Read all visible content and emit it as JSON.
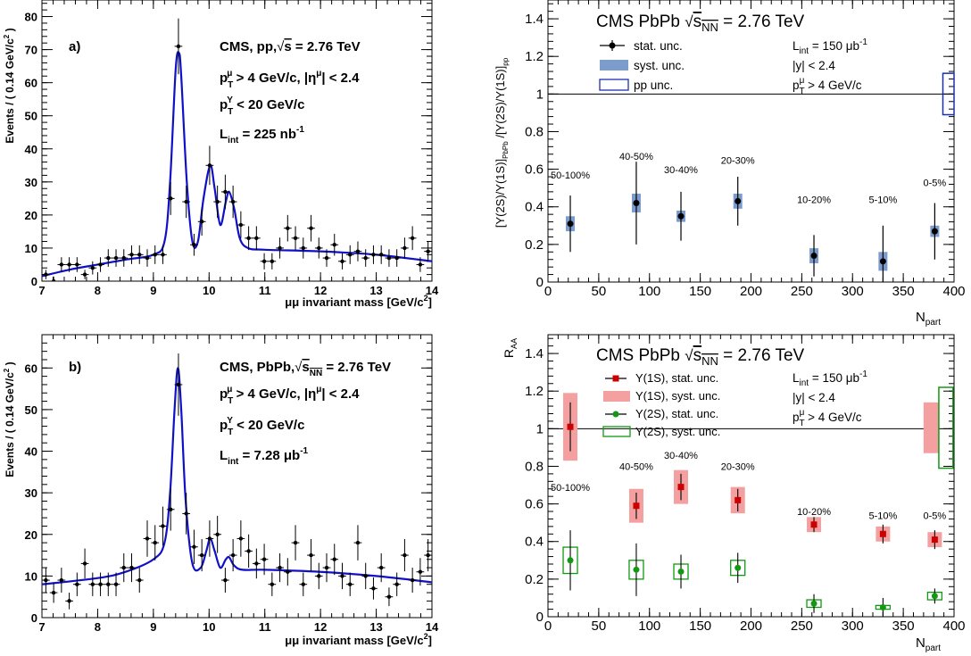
{
  "panels": {
    "a": {
      "tag": "a)",
      "lines": [
        "CMS, pp,√s = 2.76 TeV",
        "pT^μ > 4 GeV/c, |η^μ| < 2.4",
        "pT^Υ < 20 GeV/c",
        "L_int = 225 nb^-1"
      ],
      "xlabel": "μμ invariant mass [GeV/c²]",
      "ylabel": "Events / ( 0.14 GeV/c² )"
    },
    "b": {
      "tag": "b)",
      "lines": [
        "CMS, PbPb,√s_NN = 2.76 TeV",
        "pT^μ > 4 GeV/c, |η^μ| < 2.4",
        "pT^Υ < 20 GeV/c",
        "L_int = 7.28 μb^-1"
      ],
      "xlabel": "μμ invariant mass [GeV/c²]",
      "ylabel": "Events / ( 0.14 GeV/c² )"
    },
    "c": {
      "title": "CMS PbPb √sNN = 2.76 TeV",
      "legend": [
        "stat. unc.",
        "syst. unc.",
        "pp unc."
      ],
      "info": [
        "L_int = 150 μb^-1",
        "|y| < 2.4",
        "pT^μ > 4 GeV/c"
      ],
      "ylabel": "[Υ(2S)/Υ(1S)]PbPb /[Υ(2S)/Υ(1S)]pp",
      "xlabel": "N_part"
    },
    "d": {
      "title": "CMS PbPb √sNN = 2.76 TeV",
      "legend": [
        "Υ(1S), stat. unc.",
        "Υ(1S), syst. unc.",
        "Υ(2S), stat. unc.",
        "Υ(2S), syst. unc."
      ],
      "info": [
        "L_int = 150 μb^-1",
        "|y| < 2.4",
        "pT^μ > 4 GeV/c"
      ],
      "ylabel": "R_AA",
      "xlabel": "N_part"
    }
  },
  "chart_data": [
    {
      "type": "scatter",
      "panel": "a",
      "xlabel": "μμ invariant mass [GeV/c²]",
      "ylabel": "Events / ( 0.14 GeV/c² )",
      "xlim": [
        7,
        14
      ],
      "ylim": [
        0,
        85
      ],
      "xticks": [
        7,
        8,
        9,
        10,
        11,
        12,
        13,
        14
      ],
      "yticks": [
        0,
        10,
        20,
        30,
        40,
        50,
        60,
        70,
        80
      ],
      "x": [
        7.07,
        7.21,
        7.35,
        7.49,
        7.63,
        7.77,
        7.91,
        8.05,
        8.19,
        8.33,
        8.47,
        8.61,
        8.75,
        8.89,
        9.03,
        9.17,
        9.31,
        9.45,
        9.59,
        9.73,
        9.87,
        10.01,
        10.15,
        10.29,
        10.43,
        10.57,
        10.71,
        10.85,
        10.99,
        11.13,
        11.27,
        11.41,
        11.55,
        11.69,
        11.83,
        11.97,
        12.11,
        12.25,
        12.39,
        12.53,
        12.67,
        12.81,
        12.95,
        13.09,
        13.23,
        13.37,
        13.51,
        13.65,
        13.79,
        13.93
      ],
      "y": [
        2,
        0,
        5,
        5,
        5,
        2,
        4,
        5,
        7,
        7,
        7,
        8,
        8,
        7,
        8,
        8,
        25,
        71,
        24,
        11,
        18,
        35,
        24,
        27,
        24,
        17,
        13,
        13,
        6,
        6,
        10,
        16,
        13,
        10,
        16,
        10,
        7,
        11,
        6,
        8,
        9,
        7,
        8,
        8,
        7,
        7,
        10,
        13,
        5,
        9
      ],
      "fit_curve": {
        "x": [
          7,
          7.5,
          8,
          8.5,
          9,
          9.2,
          9.3,
          9.4,
          9.46,
          9.5,
          9.6,
          9.7,
          9.8,
          9.9,
          10.02,
          10.1,
          10.2,
          10.3,
          10.36,
          10.45,
          10.55,
          10.7,
          11,
          12,
          13,
          14
        ],
        "y": [
          1.5,
          3.5,
          5,
          6.5,
          8,
          12,
          30,
          64,
          69,
          62,
          30,
          12,
          12,
          25,
          35,
          28,
          17,
          24,
          27,
          22,
          13,
          10,
          9.5,
          9,
          8,
          6
        ]
      }
    },
    {
      "type": "scatter",
      "panel": "b",
      "xlabel": "μμ invariant mass [GeV/c²]",
      "ylabel": "Events / ( 0.14 GeV/c² )",
      "xlim": [
        7,
        14
      ],
      "ylim": [
        0,
        68
      ],
      "xticks": [
        7,
        8,
        9,
        10,
        11,
        12,
        13,
        14
      ],
      "yticks": [
        0,
        10,
        20,
        30,
        40,
        50,
        60
      ],
      "x": [
        7.07,
        7.21,
        7.35,
        7.49,
        7.63,
        7.77,
        7.91,
        8.05,
        8.19,
        8.33,
        8.47,
        8.61,
        8.75,
        8.89,
        9.03,
        9.17,
        9.31,
        9.45,
        9.59,
        9.73,
        9.87,
        10.01,
        10.15,
        10.29,
        10.43,
        10.57,
        10.71,
        10.85,
        10.99,
        11.13,
        11.27,
        11.41,
        11.55,
        11.69,
        11.83,
        11.97,
        12.11,
        12.25,
        12.39,
        12.53,
        12.67,
        12.81,
        12.95,
        13.09,
        13.23,
        13.37,
        13.51,
        13.65,
        13.79,
        13.93
      ],
      "y": [
        9,
        6,
        9,
        4,
        8,
        13,
        8,
        8,
        8,
        8,
        12,
        12,
        9,
        19,
        18,
        22,
        26,
        56,
        25,
        17,
        15,
        19,
        20,
        9,
        15,
        19,
        16,
        13,
        14,
        8,
        12,
        11,
        18,
        8,
        15,
        10,
        12,
        14,
        10,
        8,
        18,
        10,
        7,
        12,
        5,
        8,
        15,
        9,
        11,
        15
      ],
      "fit_curve": {
        "x": [
          7,
          8,
          8.5,
          9,
          9.2,
          9.3,
          9.38,
          9.44,
          9.5,
          9.58,
          9.7,
          9.85,
          9.95,
          10.02,
          10.1,
          10.2,
          10.3,
          10.36,
          10.45,
          10.6,
          11,
          12,
          13,
          14
        ],
        "y": [
          8,
          9.5,
          11,
          14,
          18,
          30,
          50,
          60,
          50,
          28,
          13,
          12,
          16,
          19,
          16,
          12,
          14,
          14.5,
          12.5,
          11.5,
          11.5,
          11,
          10,
          8.5
        ]
      }
    },
    {
      "type": "scatter",
      "panel": "c",
      "xlabel": "N_part",
      "ylabel": "[Υ(2S)/Υ(1S)]PbPb /[Υ(2S)/Υ(1S)]pp",
      "xlim": [
        0,
        400
      ],
      "ylim": [
        0,
        1.5
      ],
      "xticks": [
        0,
        50,
        100,
        150,
        200,
        250,
        300,
        350,
        400
      ],
      "yticks": [
        0,
        0.2,
        0.4,
        0.6,
        0.8,
        1,
        1.2,
        1.4
      ],
      "points": [
        {
          "x": 22,
          "y": 0.31,
          "stat": 0.15,
          "syst": 0.04,
          "label": "50-100%"
        },
        {
          "x": 87,
          "y": 0.42,
          "stat": 0.22,
          "syst": 0.05,
          "label": "40-50%"
        },
        {
          "x": 131,
          "y": 0.35,
          "stat": 0.13,
          "syst": 0.03,
          "label": "30-40%"
        },
        {
          "x": 187,
          "y": 0.43,
          "stat": 0.13,
          "syst": 0.04,
          "label": "20-30%"
        },
        {
          "x": 262,
          "y": 0.14,
          "stat": 0.11,
          "syst": 0.04,
          "label": "10-20%"
        },
        {
          "x": 330,
          "y": 0.11,
          "stat": 0.19,
          "syst": 0.05,
          "label": "5-10%"
        },
        {
          "x": 381,
          "y": 0.27,
          "stat": 0.15,
          "syst": 0.03,
          "label": "0-5%"
        }
      ],
      "pp_unc": {
        "low": 0.89,
        "high": 1.11
      },
      "reference_line": 1
    },
    {
      "type": "scatter",
      "panel": "d",
      "xlabel": "N_part",
      "ylabel": "R_AA",
      "xlim": [
        0,
        400
      ],
      "ylim": [
        0,
        1.5
      ],
      "xticks": [
        0,
        50,
        100,
        150,
        200,
        250,
        300,
        350,
        400
      ],
      "yticks": [
        0,
        0.2,
        0.4,
        0.6,
        0.8,
        1,
        1.2,
        1.4
      ],
      "series": [
        {
          "name": "Υ(1S)",
          "color": "#cc0000",
          "syst_color": "#f4a0a0",
          "points": [
            {
              "x": 22,
              "y": 1.01,
              "stat": 0.13,
              "syst": 0.18
            },
            {
              "x": 87,
              "y": 0.59,
              "stat": 0.07,
              "syst": 0.09
            },
            {
              "x": 131,
              "y": 0.69,
              "stat": 0.07,
              "syst": 0.09
            },
            {
              "x": 187,
              "y": 0.62,
              "stat": 0.06,
              "syst": 0.07
            },
            {
              "x": 262,
              "y": 0.49,
              "stat": 0.04,
              "syst": 0.04
            },
            {
              "x": 330,
              "y": 0.44,
              "stat": 0.05,
              "syst": 0.04
            },
            {
              "x": 381,
              "y": 0.41,
              "stat": 0.05,
              "syst": 0.04
            }
          ]
        },
        {
          "name": "Υ(2S)",
          "color": "#119911",
          "syst_color": "#119911",
          "points": [
            {
              "x": 22,
              "y": 0.3,
              "stat": 0.16,
              "syst": 0.07
            },
            {
              "x": 87,
              "y": 0.25,
              "stat": 0.14,
              "syst": 0.05
            },
            {
              "x": 131,
              "y": 0.24,
              "stat": 0.09,
              "syst": 0.04
            },
            {
              "x": 187,
              "y": 0.26,
              "stat": 0.08,
              "syst": 0.04
            },
            {
              "x": 262,
              "y": 0.07,
              "stat": 0.05,
              "syst": 0.02
            },
            {
              "x": 330,
              "y": 0.05,
              "stat": 0.05,
              "syst": 0.01
            },
            {
              "x": 381,
              "y": 0.11,
              "stat": 0.04,
              "syst": 0.02
            }
          ]
        }
      ],
      "centrality_labels": [
        {
          "x": 22,
          "label": "50-100%"
        },
        {
          "x": 87,
          "label": "40-50%"
        },
        {
          "x": 131,
          "label": "30-40%"
        },
        {
          "x": 187,
          "label": "20-30%"
        },
        {
          "x": 262,
          "label": "10-20%"
        },
        {
          "x": 330,
          "label": "5-10%"
        },
        {
          "x": 381,
          "label": "0-5%"
        }
      ],
      "reference_line": 1,
      "global_unc": {
        "Υ(1S)": {
          "low": 0.87,
          "high": 1.14
        },
        "Υ(2S)": {
          "low": 0.79,
          "high": 1.22
        }
      }
    }
  ]
}
